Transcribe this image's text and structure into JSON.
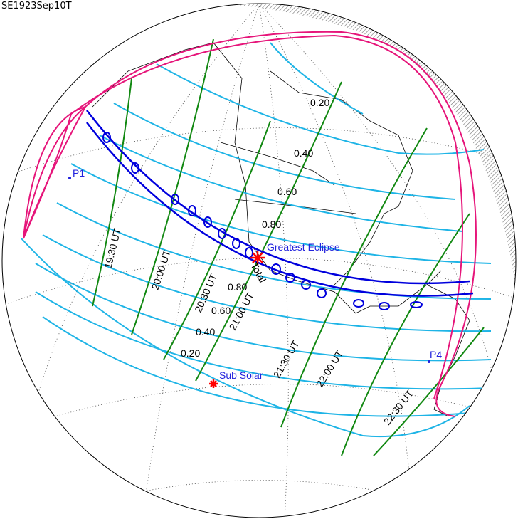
{
  "title": "SE1923Sep10T",
  "colors": {
    "magnitude_lines": "#1eb4e6",
    "time_lines": "#118811",
    "path": "#0000dd",
    "limits": "#e6157a",
    "marker": "#ff0000",
    "label": "#2222dd"
  },
  "labels": {
    "greatest_eclipse": "Greatest Eclipse",
    "total": "Total",
    "sub_solar": "Sub Solar",
    "p1": "P1",
    "p4": "P4"
  },
  "time_labels": [
    "19:30 UT",
    "20:00 UT",
    "20:30 UT",
    "21:00 UT",
    "21:30 UT",
    "22:00 UT",
    "22:30 UT"
  ],
  "magnitude_labels_north": [
    "0.20",
    "0.40",
    "0.60",
    "0.80"
  ],
  "magnitude_labels_south": [
    "0.80",
    "0.60",
    "0.40",
    "0.20"
  ]
}
